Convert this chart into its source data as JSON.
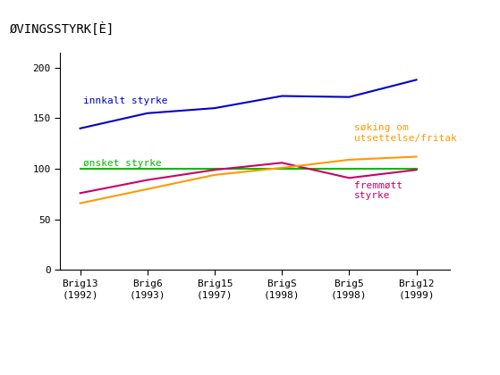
{
  "x_labels": [
    "Brig13\n(1992)",
    "Brig6\n(1993)",
    "Brig15\n(1997)",
    "BrigS\n(1998)",
    "Brig5\n(1998)",
    "Brig12\n(1999)"
  ],
  "x_positions": [
    0,
    1,
    2,
    3,
    4,
    5
  ],
  "innkalt": [
    140,
    155,
    160,
    172,
    171,
    188
  ],
  "onsket": [
    100,
    100,
    100,
    100,
    100,
    100
  ],
  "fremmoett": [
    76,
    89,
    99,
    106,
    91,
    99
  ],
  "soking": [
    66,
    80,
    94,
    101,
    109,
    112
  ],
  "innkalt_color": "#0000cc",
  "onsket_color": "#00bb00",
  "fremmoett_color": "#cc0066",
  "soking_color": "#ff9900",
  "title": "ØVINGSSTYRK[È]",
  "background_color": "#ffffff",
  "ylim": [
    0,
    215
  ],
  "yticks": [
    0,
    50,
    100,
    150,
    200
  ],
  "label_innkalt": "innkalt styrke",
  "label_onsket": "ønsket styrke",
  "label_fremmoett": "fremmøtt\nstyrke",
  "label_soking": "søking om\nutsettelse/fritak",
  "font_family": "monospace",
  "font_size_title": 10,
  "font_size_labels": 8,
  "font_size_ticks": 8,
  "font_size_annot": 8,
  "linewidth": 1.5
}
